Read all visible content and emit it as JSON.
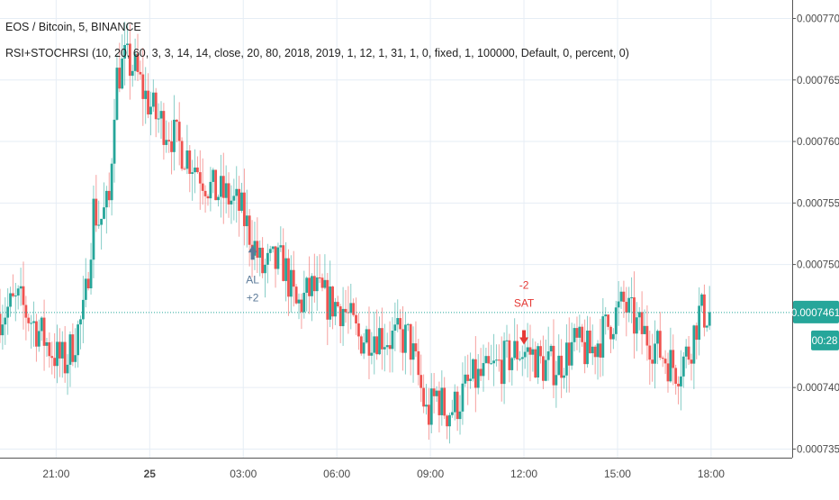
{
  "header": {
    "symbol": "EOS / Bitcoin, 5, BINANCE",
    "indicator": "RSI+STOCHRSI (10, 20, 60, 3, 3, 14, 14, close, 20, 80, 2018, 2019, 1, 12, 1, 31, 1, 0, fixed, 1, 100000, Default, 0, percent, 0)"
  },
  "colors": {
    "up": "#26a69a",
    "down": "#ef5350",
    "grid": "#e6edf5",
    "price_line": "#26a69a",
    "buy_arrow": "#5b7a99",
    "sell_arrow": "#e53935"
  },
  "chart_data": {
    "type": "candlestick",
    "title": "EOS / Bitcoin, 5, BINANCE",
    "x_ticks": [
      "21:00",
      "25",
      "03:00",
      "06:00",
      "09:00",
      "12:00",
      "15:00",
      "18:00"
    ],
    "x_tick_hours": [
      21,
      24,
      27,
      30,
      33,
      36,
      39,
      42
    ],
    "x_range_hours": [
      19.2,
      44.6
    ],
    "y_ticks": [
      "0.0007700",
      "0.0007650",
      "0.0007600",
      "0.0007550",
      "0.0007500",
      "0.0007400",
      "0.0007350"
    ],
    "y_tick_values": [
      0.00077,
      0.000765,
      0.00076,
      0.000755,
      0.00075,
      0.00074,
      0.000735
    ],
    "ylim": [
      0.0007343,
      0.0007715
    ],
    "grid": true,
    "last_price": "0.0007461",
    "last_price_value": 0.0007461,
    "countdown": "00:28",
    "path_hours": [
      19.2,
      19.8,
      20.2,
      20.6,
      21.0,
      21.3,
      21.6,
      21.9,
      22.2,
      22.4,
      22.7,
      22.9,
      23.2,
      23.5,
      23.8,
      24.2,
      24.6,
      25.0,
      25.5,
      26.0,
      26.5,
      26.9,
      27.3,
      27.6,
      27.9,
      28.3,
      28.7,
      29.2,
      29.7,
      30.2,
      30.7,
      31.2,
      31.7,
      32.3,
      32.6,
      32.9,
      33.2,
      33.5,
      33.8,
      34.3,
      34.8,
      35.3,
      35.8,
      36.2,
      36.6,
      37.1,
      37.6,
      38.1,
      38.5,
      38.9,
      39.2,
      39.6,
      40.0,
      40.5,
      40.9,
      41.3,
      41.6,
      42.0
    ],
    "path_values": [
      0.000746,
      0.000747,
      0.0007455,
      0.000744,
      0.0007425,
      0.000742,
      0.000744,
      0.000746,
      0.0007545,
      0.0007535,
      0.000755,
      0.000765,
      0.0007665,
      0.000766,
      0.000764,
      0.000762,
      0.000761,
      0.0007595,
      0.000758,
      0.000756,
      0.0007555,
      0.0007545,
      0.000752,
      0.0007495,
      0.00075,
      0.00075,
      0.0007465,
      0.000748,
      0.000747,
      0.0007465,
      0.000744,
      0.0007445,
      0.000744,
      0.000744,
      0.000741,
      0.0007375,
      0.0007395,
      0.000738,
      0.0007385,
      0.0007405,
      0.000741,
      0.000742,
      0.000743,
      0.0007428,
      0.0007418,
      0.0007418,
      0.0007435,
      0.0007428,
      0.0007443,
      0.0007458,
      0.0007468,
      0.000745,
      0.000744,
      0.0007425,
      0.0007415,
      0.000743,
      0.000746,
      0.0007461
    ],
    "annotations": [
      {
        "type": "buy",
        "hour": 27.3,
        "lines": [
          "AL",
          "+2"
        ]
      },
      {
        "type": "sell",
        "hour": 36.0,
        "lines": [
          "-2",
          "SAT"
        ]
      }
    ]
  }
}
